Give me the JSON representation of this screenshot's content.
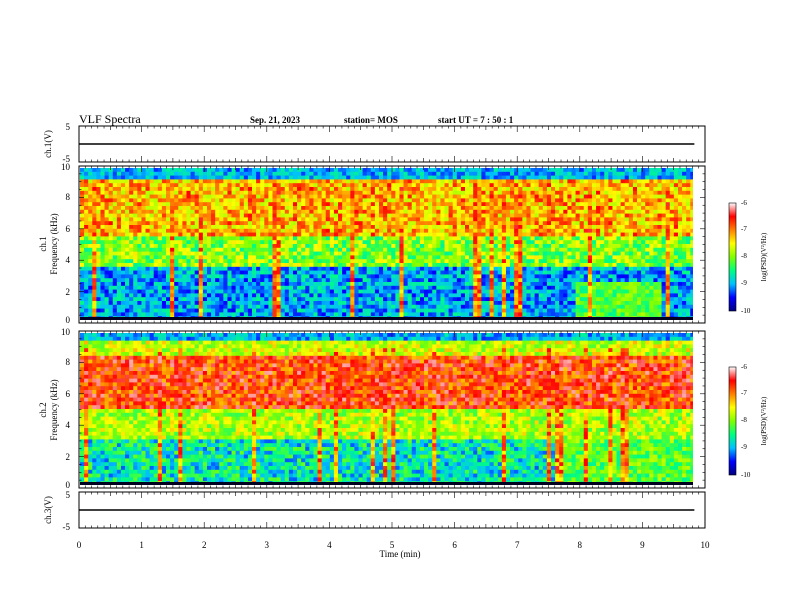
{
  "header": {
    "title": "VLF Spectra",
    "date": "Sep. 21, 2023",
    "station": "station= MOS",
    "start": "start  UT =   7 : 50 : 1"
  },
  "chart_data": [
    {
      "type": "line",
      "ylabel": "ch.1(V)",
      "ylim": [
        -5,
        5
      ],
      "yticks": [
        "5",
        "-5"
      ],
      "series": [
        {
          "x": [
            0,
            9.83
          ],
          "y": [
            0,
            0
          ]
        }
      ]
    },
    {
      "type": "heatmap",
      "ylabel_line1": "ch.1",
      "ylabel_line2": "Frequency (kHz)",
      "ylim": [
        0,
        10
      ],
      "yticks": [
        "0",
        "2",
        "4",
        "6",
        "8",
        "10"
      ],
      "xlim": [
        0,
        10
      ],
      "colorbar": {
        "label": "log(PSD)(V²/Hz)",
        "range": [
          -10,
          -6
        ],
        "ticks": [
          "-6",
          "-7",
          "-8",
          "-9",
          "-10"
        ],
        "colors": [
          "#000080",
          "#0000ff",
          "#00c0ff",
          "#00ff80",
          "#80ff00",
          "#ffff00",
          "#ff8000",
          "#ff0000",
          "#ffffff"
        ]
      }
    },
    {
      "type": "heatmap",
      "ylabel_line1": "ch.2",
      "ylabel_line2": "Frequency (kHz)",
      "ylim": [
        0,
        10
      ],
      "yticks": [
        "0",
        "2",
        "4",
        "6",
        "8",
        "10"
      ],
      "xlim": [
        0,
        10
      ],
      "colorbar": {
        "label": "log(PSD)(V²/Hz)",
        "range": [
          -10,
          -6
        ],
        "ticks": [
          "-6",
          "-7",
          "-8",
          "-9",
          "-10"
        ],
        "colors": [
          "#000080",
          "#0000ff",
          "#00c0ff",
          "#00ff80",
          "#80ff00",
          "#ffff00",
          "#ff8000",
          "#ff0000",
          "#ffffff"
        ]
      }
    },
    {
      "type": "line",
      "ylabel": "ch.3(V)",
      "ylim": [
        -5,
        5
      ],
      "yticks": [
        "5",
        "-5"
      ],
      "xlabel": "Time (min)",
      "xlim": [
        0,
        10
      ],
      "xticks": [
        "0",
        "1",
        "2",
        "3",
        "4",
        "5",
        "6",
        "7",
        "8",
        "9",
        "10"
      ],
      "series": [
        {
          "x": [
            0,
            9.83
          ],
          "y": [
            0,
            0
          ]
        }
      ]
    }
  ]
}
